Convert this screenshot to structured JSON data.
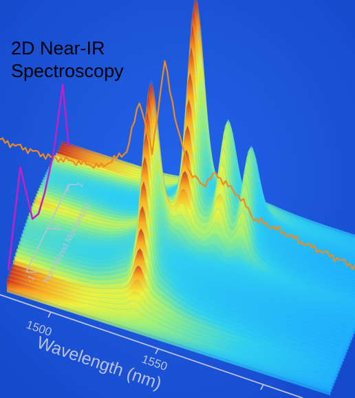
{
  "title_lines": [
    "2D Near-IR",
    "Spectroscopy"
  ],
  "chart_data": {
    "type": "surface",
    "title": "2D Near-IR Spectroscopy",
    "xlabel": "Wavelength (nm)",
    "x_ticks": [
      "1500",
      "1550"
    ],
    "ylabel": "Normalized Momentum",
    "y_ticks": [
      "-1",
      "0",
      "1"
    ],
    "colors": {
      "background": "#1a4fd6",
      "axis": "#b9c2d6",
      "wavelength_projection": "#f08a1e",
      "momentum_projection": "#c020c8",
      "colormap": [
        "#1aa6ff",
        "#2fd0f0",
        "#9ef07a",
        "#f2f23a",
        "#ff9c1a",
        "#c8141a"
      ]
    },
    "wavelength_projection": {
      "x": [
        1480,
        1500,
        1520,
        1530,
        1535,
        1540,
        1545,
        1550,
        1555,
        1560,
        1565,
        1570,
        1575,
        1580,
        1590,
        1600,
        1610,
        1620
      ],
      "y": [
        0.05,
        0.05,
        0.1,
        0.25,
        0.6,
        0.3,
        0.9,
        0.5,
        0.25,
        0.2,
        0.3,
        0.25,
        0.2,
        0.1,
        0.08,
        0.05,
        0.03,
        0.01
      ]
    },
    "momentum_projection": {
      "momentum": [
        -1,
        -0.6,
        -0.2,
        0,
        0.2,
        0.5,
        0.8,
        1
      ],
      "intensity": [
        0.1,
        0.9,
        0.2,
        0.15,
        0.25,
        0.5,
        1.0,
        0.3
      ]
    },
    "peaks": [
      {
        "wavelength": 1545,
        "momentum": 0.4,
        "intensity": 1.0
      },
      {
        "wavelength": 1535,
        "momentum": -0.4,
        "intensity": 0.85
      },
      {
        "wavelength": 1560,
        "momentum": 0.3,
        "intensity": 0.45
      },
      {
        "wavelength": 1570,
        "momentum": 0.3,
        "intensity": 0.4
      }
    ]
  }
}
